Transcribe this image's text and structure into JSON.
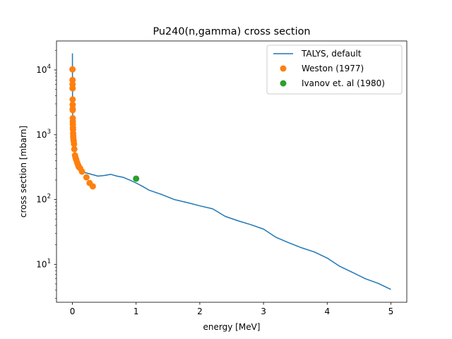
{
  "chart_data": {
    "type": "scatter",
    "title": "Pu240(n,gamma) cross section",
    "xlabel": "energy [MeV]",
    "ylabel": "cross section [mbarn]",
    "xlim": [
      -0.25,
      5.25
    ],
    "ylim": [
      2.6,
      28000
    ],
    "yscale": "log",
    "grid": false,
    "legend_position": "top-right",
    "x_ticks": [
      {
        "value": 0,
        "label": "0"
      },
      {
        "value": 1,
        "label": "1"
      },
      {
        "value": 2,
        "label": "2"
      },
      {
        "value": 3,
        "label": "3"
      },
      {
        "value": 4,
        "label": "4"
      },
      {
        "value": 5,
        "label": "5"
      }
    ],
    "y_ticks": [
      {
        "value": 10,
        "base": "10",
        "exp": "1"
      },
      {
        "value": 100,
        "base": "10",
        "exp": "2"
      },
      {
        "value": 1000,
        "base": "10",
        "exp": "3"
      },
      {
        "value": 10000,
        "base": "10",
        "exp": "4"
      }
    ],
    "series": [
      {
        "name": "TALYS, default",
        "kind": "line",
        "color": "#1f77b4",
        "x": [
          0.0,
          0.0005,
          0.001,
          0.002,
          0.005,
          0.01,
          0.02,
          0.04,
          0.06,
          0.08,
          0.1,
          0.15,
          0.2,
          0.3,
          0.4,
          0.5,
          0.6,
          0.7,
          0.8,
          0.9,
          1.0,
          1.1,
          1.2,
          1.4,
          1.6,
          1.8,
          2.0,
          2.2,
          2.4,
          2.6,
          2.8,
          3.0,
          3.2,
          3.4,
          3.6,
          3.8,
          4.0,
          4.2,
          4.4,
          4.6,
          4.8,
          5.0
        ],
        "y": [
          18000,
          10000,
          5000,
          3000,
          1800,
          1200,
          800,
          500,
          400,
          340,
          300,
          270,
          260,
          245,
          230,
          235,
          245,
          230,
          220,
          200,
          180,
          160,
          140,
          120,
          100,
          90,
          80,
          72,
          55,
          47,
          41,
          35,
          26,
          21.5,
          18,
          15.5,
          12.5,
          9.3,
          7.5,
          6.0,
          5.1,
          4.1
        ]
      },
      {
        "name": "Weston (1977)",
        "kind": "markers",
        "color": "#ff7f0e",
        "x": [
          0.001,
          0.0015,
          0.002,
          0.0025,
          0.003,
          0.0035,
          0.004,
          0.0045,
          0.005,
          0.006,
          0.007,
          0.008,
          0.009,
          0.011,
          0.013,
          0.015,
          0.02,
          0.025,
          0.03,
          0.04,
          0.05,
          0.06,
          0.075,
          0.09,
          0.1,
          0.12,
          0.15,
          0.22,
          0.27,
          0.32
        ],
        "y": [
          10200,
          7000,
          6000,
          5200,
          3500,
          2900,
          2500,
          2400,
          1800,
          1600,
          1450,
          1300,
          1200,
          1050,
          950,
          870,
          800,
          720,
          600,
          480,
          440,
          410,
          370,
          340,
          320,
          305,
          270,
          220,
          180,
          160
        ]
      },
      {
        "name": "Ivanov et. al (1980)",
        "kind": "markers",
        "color": "#2ca02c",
        "x": [
          1.0
        ],
        "y": [
          210
        ]
      }
    ]
  }
}
